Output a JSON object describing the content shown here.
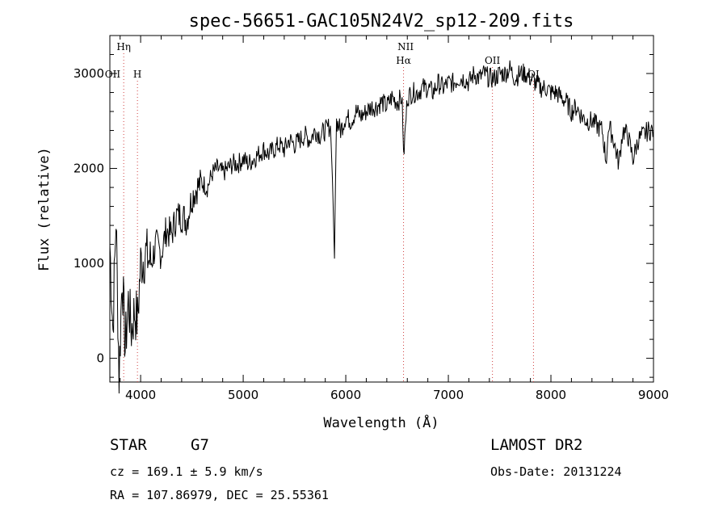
{
  "chart_data": {
    "type": "line",
    "title": "spec-56651-GAC105N24V2_sp12-209.fits",
    "xlabel": "Wavelength (Å)",
    "ylabel": "Flux (relative)",
    "xlim": [
      3700,
      9000
    ],
    "ylim": [
      -250,
      3400
    ],
    "x_ticks": [
      4000,
      5000,
      6000,
      7000,
      8000,
      9000
    ],
    "y_ticks": [
      0,
      1000,
      2000,
      3000
    ],
    "x_tick_labels": [
      "4000",
      "5000",
      "6000",
      "7000",
      "8000",
      "9000"
    ],
    "y_tick_labels": [
      "0",
      "1000",
      "2000",
      "3000"
    ],
    "grid": false,
    "series": [
      {
        "x": [
          3700,
          3730,
          3760,
          3790,
          3820,
          3850,
          3880,
          3910,
          3940,
          3970,
          4000,
          4050,
          4100,
          4150,
          4200,
          4250,
          4300,
          4350,
          4400,
          4450,
          4500,
          4550,
          4600,
          4650,
          4700,
          4750,
          4800,
          4850,
          4900,
          4950,
          5000,
          5050,
          5100,
          5150,
          5200,
          5250,
          5300,
          5350,
          5400,
          5450,
          5500,
          5550,
          5600,
          5650,
          5700,
          5750,
          5800,
          5850,
          5870,
          5890,
          5896,
          5910,
          5950,
          6000,
          6050,
          6100,
          6150,
          6200,
          6250,
          6300,
          6350,
          6400,
          6450,
          6500,
          6550,
          6563,
          6600,
          6650,
          6700,
          6750,
          6800,
          6850,
          6900,
          6950,
          7000,
          7050,
          7100,
          7150,
          7200,
          7250,
          7300,
          7350,
          7400,
          7450,
          7500,
          7550,
          7600,
          7650,
          7700,
          7750,
          7800,
          7850,
          7900,
          7950,
          8000,
          8050,
          8100,
          8150,
          8200,
          8250,
          8300,
          8350,
          8400,
          8450,
          8500,
          8542,
          8560,
          8600,
          8662,
          8700,
          8750,
          8800,
          8850,
          8900,
          8950,
          9000
        ],
        "y": [
          1200,
          300,
          1500,
          -200,
          900,
          100,
          600,
          300,
          500,
          400,
          1000,
          1100,
          1000,
          1200,
          1100,
          1350,
          1300,
          1500,
          1500,
          1450,
          1700,
          1800,
          1850,
          1800,
          1950,
          2000,
          1950,
          2000,
          2050,
          2050,
          2100,
          2050,
          2100,
          2150,
          2200,
          2150,
          2200,
          2250,
          2200,
          2300,
          2250,
          2300,
          2350,
          2300,
          2400,
          2350,
          2400,
          2450,
          1900,
          1050,
          1600,
          2500,
          2400,
          2550,
          2500,
          2600,
          2550,
          2600,
          2650,
          2650,
          2700,
          2650,
          2750,
          2700,
          2750,
          2100,
          2750,
          2800,
          2800,
          2850,
          2850,
          2800,
          2900,
          2850,
          2900,
          2900,
          2950,
          2950,
          2900,
          3000,
          2950,
          3000,
          2950,
          2950,
          3000,
          3000,
          3050,
          2950,
          3000,
          3000,
          2950,
          2900,
          2850,
          2850,
          2800,
          2800,
          2750,
          2700,
          2600,
          2650,
          2550,
          2500,
          2500,
          2450,
          2400,
          2050,
          2450,
          2350,
          2050,
          2400,
          2350,
          2100,
          2300,
          2350,
          2400,
          2400
        ]
      }
    ],
    "line_labels": [
      {
        "text": "Hη",
        "x": 3835,
        "dashed": true,
        "level": "top"
      },
      {
        "text": "OII",
        "x": 3727,
        "dashed": false,
        "level": "mid"
      },
      {
        "text": "H",
        "x": 3969,
        "dashed": true,
        "level": "mid"
      },
      {
        "text": "NII",
        "x": 6583,
        "dashed": false,
        "level": "top"
      },
      {
        "text": "Hα",
        "x": 6563,
        "dashed": true,
        "level": "upper"
      },
      {
        "text": "OII",
        "x": 7430,
        "dashed": true,
        "level": "upper"
      },
      {
        "text": "OI",
        "x": 7830,
        "dashed": true,
        "level": "mid"
      }
    ]
  },
  "info": {
    "object_class": "STAR",
    "subclass": "G7",
    "survey": "LAMOST DR2",
    "cz": "cz = 169.1 ± 5.9 km/s",
    "obs_date": "Obs-Date: 20131224",
    "coords": "RA = 107.86979, DEC =  25.55361"
  },
  "colors": {
    "axis": "#000000",
    "spectrum": "#000000",
    "marker_lines": "#d04040"
  }
}
